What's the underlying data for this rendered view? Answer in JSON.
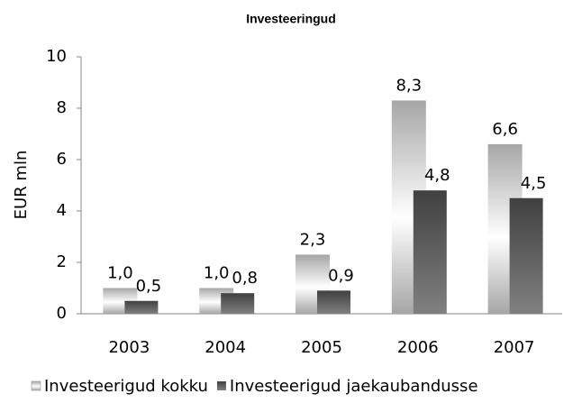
{
  "chart_data": {
    "type": "bar",
    "title": "Investeeringud",
    "y_label": "EUR mln",
    "categories": [
      "2003",
      "2004",
      "2005",
      "2006",
      "2007"
    ],
    "series": [
      {
        "name": "Investeerigud kokku",
        "color": "#a6a6a6",
        "values": [
          1.0,
          1.0,
          2.3,
          8.3,
          6.6
        ],
        "value_labels": [
          "1,0",
          "1,0",
          "2,3",
          "8,3",
          "6,6"
        ]
      },
      {
        "name": "Investeerigud jaekaubandusse",
        "color": "#404040",
        "values": [
          0.5,
          0.8,
          0.9,
          4.8,
          4.5
        ],
        "value_labels": [
          "0,5",
          "0,8",
          "0,9",
          "4,8",
          "4,5"
        ]
      }
    ],
    "ylim": [
      0,
      10
    ],
    "yticks": [
      0,
      2,
      4,
      6,
      8,
      10
    ],
    "grid": false,
    "legend": "bottom"
  }
}
